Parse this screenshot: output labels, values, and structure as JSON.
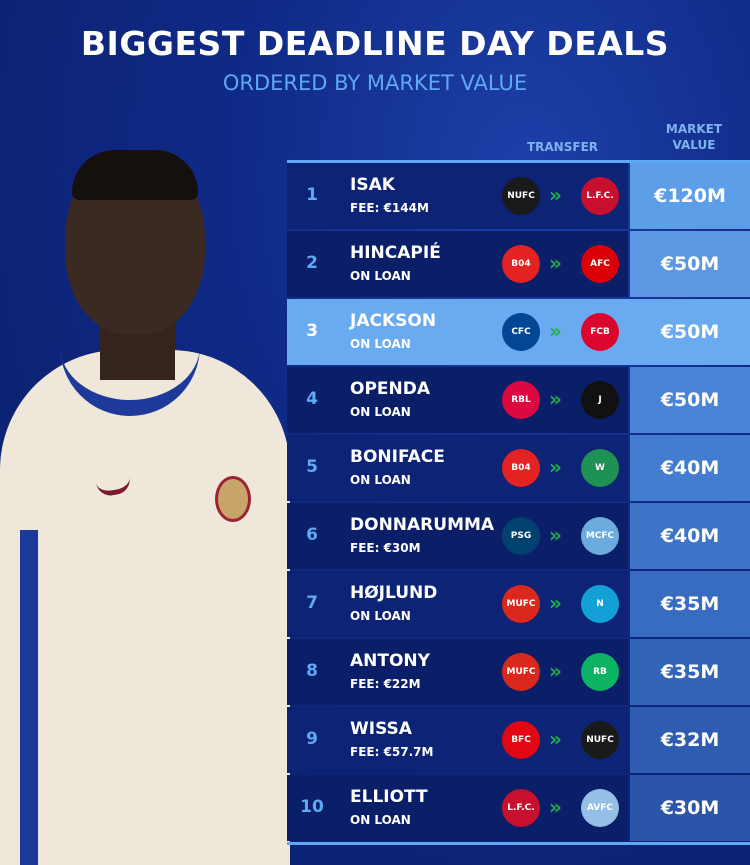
{
  "title": "BIGGEST DEADLINE DAY DEALS",
  "subtitle": "ORDERED BY MARKET VALUE",
  "headers": {
    "transfer": "TRANSFER",
    "market_value": "MARKET VALUE"
  },
  "accent_color": "#5fa8f2",
  "arrow_glyph": "»",
  "deals": [
    {
      "rank": "1",
      "player": "ISAK",
      "note": "FEE: €144M",
      "from": "Newcastle",
      "from_abbr": "NUFC",
      "from_color": "#1a1a1a",
      "to": "Liverpool",
      "to_abbr": "L.F.C.",
      "to_color": "#c8102e",
      "value": "€120M",
      "value_color": "#5d9ee9"
    },
    {
      "rank": "2",
      "player": "HINCAPIÉ",
      "note": "ON LOAN",
      "from": "Leverkusen",
      "from_abbr": "B04",
      "from_color": "#e32221",
      "to": "Arsenal",
      "to_abbr": "AFC",
      "to_color": "#db0007",
      "value": "€50M",
      "value_color": "#5a98e3"
    },
    {
      "rank": "3",
      "player": "JACKSON",
      "note": "ON LOAN",
      "from": "Chelsea",
      "from_abbr": "CFC",
      "from_color": "#034694",
      "to": "Bayern München",
      "to_abbr": "FCB",
      "to_color": "#dc052d",
      "value": "€50M",
      "value_color": "#6aaaf0"
    },
    {
      "rank": "4",
      "player": "OPENDA",
      "note": "ON LOAN",
      "from": "RB Leipzig",
      "from_abbr": "RBL",
      "from_color": "#dd0741",
      "to": "Juventus",
      "to_abbr": "J",
      "to_color": "#111111",
      "value": "€50M",
      "value_color": "#4a84d6"
    },
    {
      "rank": "5",
      "player": "BONIFACE",
      "note": "ON LOAN",
      "from": "Leverkusen",
      "from_abbr": "B04",
      "from_color": "#e32221",
      "to": "Werder Bremen",
      "to_abbr": "W",
      "to_color": "#1d9053",
      "value": "€40M",
      "value_color": "#447dd0"
    },
    {
      "rank": "6",
      "player": "DONNARUMMA",
      "note": "FEE: €30M",
      "from": "Paris Saint-Germain",
      "from_abbr": "PSG",
      "from_color": "#004170",
      "to": "Manchester City",
      "to_abbr": "MCFC",
      "to_color": "#6cabdd",
      "value": "€40M",
      "value_color": "#3e74c8"
    },
    {
      "rank": "7",
      "player": "HØJLUND",
      "note": "ON LOAN",
      "from": "Manchester United",
      "from_abbr": "MUFC",
      "from_color": "#da291c",
      "to": "Napoli",
      "to_abbr": "N",
      "to_color": "#12a0d7",
      "value": "€35M",
      "value_color": "#386cc0"
    },
    {
      "rank": "8",
      "player": "ANTONY",
      "note": "FEE: €22M",
      "from": "Manchester United",
      "from_abbr": "MUFC",
      "from_color": "#da291c",
      "to": "Real Betis",
      "to_abbr": "RB",
      "to_color": "#0bb363",
      "value": "€35M",
      "value_color": "#3264b8"
    },
    {
      "rank": "9",
      "player": "WISSA",
      "note": "FEE: €57.7M",
      "from": "Brentford",
      "from_abbr": "BFC",
      "from_color": "#e30613",
      "to": "Newcastle",
      "to_abbr": "NUFC",
      "to_color": "#1a1a1a",
      "value": "€32M",
      "value_color": "#2d5cb0"
    },
    {
      "rank": "10",
      "player": "ELLIOTT",
      "note": "ON LOAN",
      "from": "Liverpool",
      "from_abbr": "L.F.C.",
      "from_color": "#c8102e",
      "to": "Aston Villa",
      "to_abbr": "AVFC",
      "to_color": "#95bfe5",
      "value": "€30M",
      "value_color": "#2a55a8"
    }
  ]
}
